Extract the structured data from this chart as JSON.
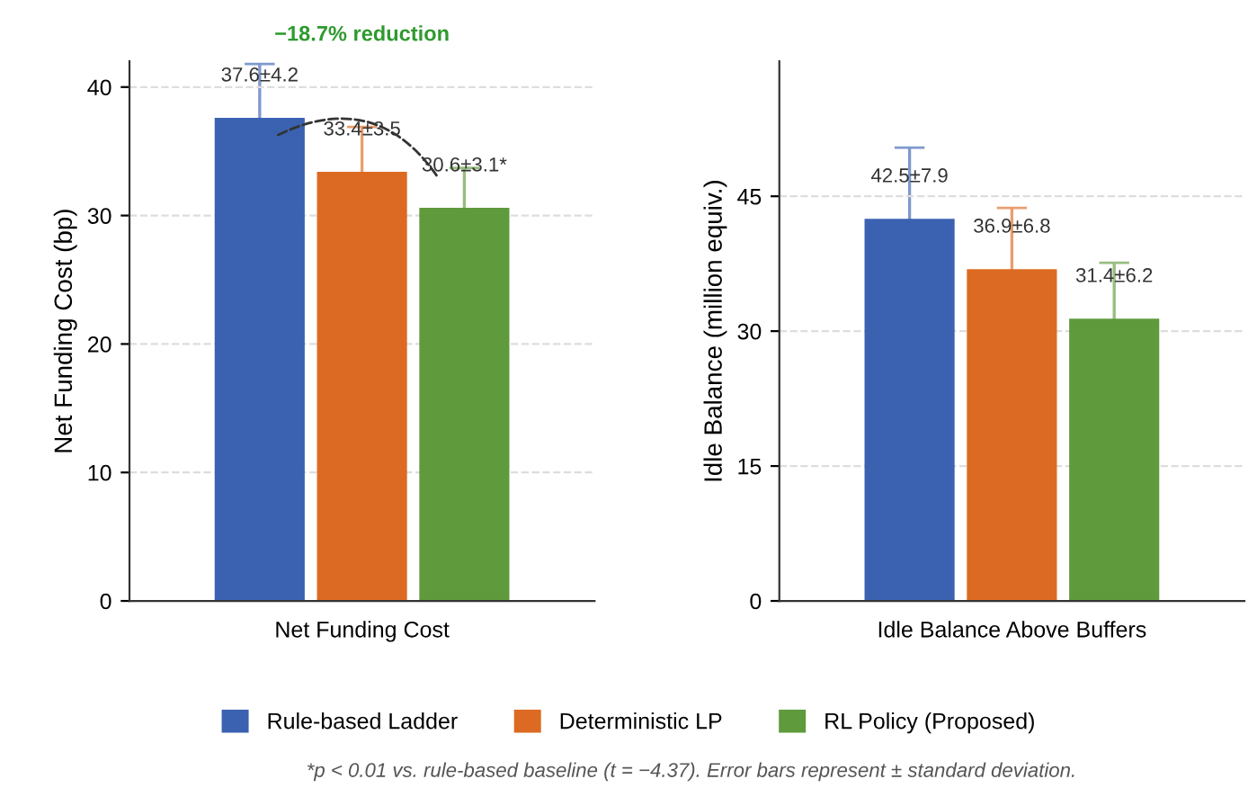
{
  "chart_data": [
    {
      "type": "bar",
      "ylabel": "Net Funding Cost (bp)",
      "categories": [
        "Net Funding Cost"
      ],
      "ylim": [
        0,
        42
      ],
      "yticks": [
        0,
        10,
        20,
        30,
        40
      ],
      "grid": "y",
      "legend": "bottom",
      "annotations": [
        "−18.7% reduction",
        "*p < 0.01 vs. rule-based baseline (t = −4.37). Error bars represent ± standard deviation."
      ],
      "series": [
        {
          "name": "Rule-based Ladder",
          "color": "#3a62b0",
          "values": [
            37.6
          ],
          "errors": [
            4.2
          ],
          "value_labels": [
            "37.6±4.2"
          ]
        },
        {
          "name": "Deterministic LP",
          "color": "#dd6a22",
          "values": [
            33.4
          ],
          "errors": [
            3.5
          ],
          "value_labels": [
            "33.4±3.5"
          ]
        },
        {
          "name": "RL Policy (Proposed)",
          "color": "#5f9a3c",
          "values": [
            30.6
          ],
          "errors": [
            3.1
          ],
          "value_labels": [
            "30.6±3.1*"
          ]
        }
      ]
    },
    {
      "type": "bar",
      "ylabel": "Idle Balance (million equiv.)",
      "categories": [
        "Idle Balance Above Buffers"
      ],
      "ylim": [
        0,
        60
      ],
      "yticks": [
        0,
        15,
        30,
        45
      ],
      "grid": "y",
      "legend": "bottom",
      "series": [
        {
          "name": "Rule-based Ladder",
          "color": "#3a62b0",
          "values": [
            42.5
          ],
          "errors": [
            7.9
          ],
          "value_labels": [
            "42.5±7.9"
          ]
        },
        {
          "name": "Deterministic LP",
          "color": "#dd6a22",
          "values": [
            36.9
          ],
          "errors": [
            6.8
          ],
          "value_labels": [
            "36.9±6.8"
          ]
        },
        {
          "name": "RL Policy (Proposed)",
          "color": "#5f9a3c",
          "values": [
            31.4
          ],
          "errors": [
            6.2
          ],
          "value_labels": [
            "31.4±6.2"
          ]
        }
      ]
    }
  ]
}
